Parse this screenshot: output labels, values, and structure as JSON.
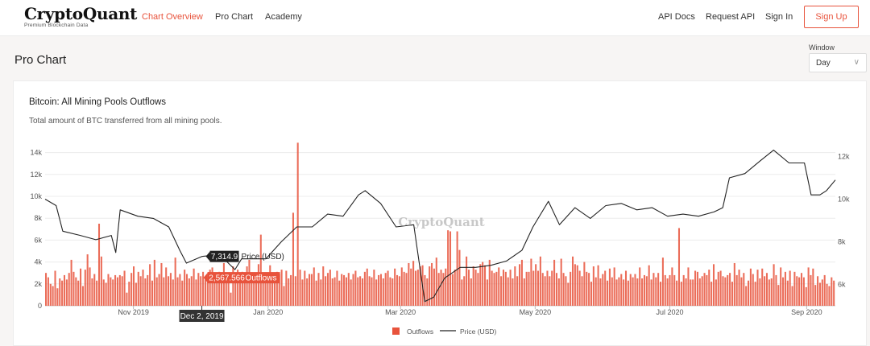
{
  "brand": {
    "name": "CryptoQuant",
    "tagline": "Premium Blockchain Data"
  },
  "nav": {
    "left": [
      "Chart Overview",
      "Pro Chart",
      "Academy"
    ],
    "right": [
      "API Docs",
      "Request API",
      "Sign In"
    ],
    "signup": "Sign Up",
    "accent": "#e8533c"
  },
  "page": {
    "title": "Pro Chart"
  },
  "window": {
    "label": "Window",
    "value": "Day"
  },
  "chart_card": {
    "title": "Bitcoin: All Mining Pools Outflows",
    "subtitle": "Total amount of BTC transferred from all mining pools."
  },
  "chart_data": {
    "type": "bar",
    "title": "Bitcoin: All Mining Pools Outflows",
    "watermark": "CryptoQuant",
    "x_ticks": [
      "Nov 2019",
      "Jan 2020",
      "Mar 2020",
      "May 2020",
      "Jul 2020",
      "Sep 2020"
    ],
    "left_axis": {
      "ticks": [
        "0",
        "2k",
        "4k",
        "6k",
        "8k",
        "10k",
        "12k",
        "14k"
      ],
      "ylim": [
        0,
        15000
      ]
    },
    "right_axis": {
      "ticks": [
        "6k",
        "8k",
        "10k",
        "12k"
      ],
      "ylim": [
        5000,
        12700
      ]
    },
    "series": [
      {
        "name": "Outflows",
        "kind": "bar",
        "color": "#e8533c",
        "x_start": "Sep 22, 2019",
        "x_end": "Sep 14, 2020",
        "values": [
          3000,
          2600,
          2000,
          1800,
          3200,
          1600,
          2500,
          2300,
          2800,
          2400,
          3000,
          4200,
          3100,
          2600,
          2300,
          3400,
          1800,
          3300,
          4700,
          3500,
          2500,
          2900,
          2300,
          7500,
          4500,
          2400,
          2100,
          2900,
          2600,
          2400,
          2800,
          2600,
          2800,
          2700,
          3200,
          1200,
          2200,
          3000,
          3600,
          2100,
          3100,
          2700,
          3300,
          2500,
          2800,
          3800,
          2300,
          4200,
          2600,
          2900,
          3900,
          2600,
          3500,
          2700,
          3000,
          2400,
          4400,
          2600,
          2900,
          2300,
          3300,
          2900,
          2500,
          2700,
          3400,
          2400,
          3000,
          2700,
          3100,
          2400,
          2500,
          3300,
          3500,
          2800,
          2400,
          3100,
          2500,
          3900,
          2700,
          2900,
          1200,
          3600,
          2400,
          3300,
          2700,
          3100,
          2800,
          3600,
          4200,
          2500,
          3000,
          2400,
          3800,
          6500,
          2600,
          3000,
          2400,
          3700,
          2700,
          2500,
          3100,
          2900,
          3300,
          1800,
          3200,
          2500,
          2800,
          8500,
          2700,
          14900,
          3300,
          2400,
          3200,
          2500,
          2900,
          2900,
          3500,
          2300,
          3000,
          2400,
          3600,
          2700,
          3000,
          3300,
          2500,
          2600,
          3200,
          2300,
          2900,
          2800,
          2600,
          3000,
          2400,
          2900,
          3200,
          2600,
          2700,
          2500,
          3100,
          3400,
          2700,
          2600,
          3300,
          2400,
          2800,
          2900,
          2500,
          3000,
          3200,
          2600,
          2500,
          3400,
          2800,
          2700,
          3500,
          3100,
          3000,
          3900,
          3400,
          4100,
          3200,
          3300,
          3600,
          3700,
          2800,
          2500,
          3600,
          3900,
          3400,
          4400,
          3000,
          3300,
          3000,
          3400,
          6900,
          6800,
          2900,
          3300,
          6800,
          5100,
          2400,
          2700,
          4500,
          3300,
          2500,
          3600,
          3300,
          3000,
          3800,
          4000,
          3700,
          2400,
          4200,
          3200,
          3000,
          3100,
          3500,
          2700,
          3300,
          3100,
          2600,
          3300,
          2500,
          3600,
          2700,
          3800,
          4200,
          2500,
          3100,
          3100,
          4300,
          3200,
          3800,
          3200,
          4500,
          3000,
          2700,
          3200,
          2700,
          3200,
          4200,
          3000,
          2500,
          4300,
          3000,
          2700,
          2100,
          3100,
          4500,
          3800,
          3700,
          3200,
          2700,
          4000,
          3100,
          3000,
          2200,
          3600,
          2600,
          3700,
          2500,
          2900,
          3200,
          2300,
          3400,
          2600,
          3500,
          2400,
          2600,
          2900,
          2400,
          3200,
          2300,
          2900,
          2600,
          2900,
          2500,
          3500,
          2500,
          2800,
          2700,
          3700,
          2400,
          3000,
          2600,
          3000,
          2200,
          4400,
          2800,
          2500,
          2800,
          3500,
          2800,
          2300,
          7100,
          2200,
          2800,
          2500,
          3500,
          2400,
          2400,
          3200,
          3100,
          2500,
          2700,
          3000,
          2800,
          3300,
          2200,
          3800,
          2400,
          3100,
          3200,
          2700,
          2600,
          2800,
          3000,
          2200,
          3900,
          2800,
          3300,
          2600,
          3000,
          1800,
          2300,
          3400,
          2900,
          2200,
          3300,
          2500,
          3400,
          2700,
          3000,
          2400,
          2500,
          3800,
          2800,
          1900,
          3500,
          2600,
          3100,
          2300,
          3200,
          1800,
          3100,
          2700,
          2600,
          3000,
          2600,
          1700,
          3500,
          2800,
          3400,
          1900,
          2700,
          2100,
          2400,
          2800,
          2000,
          1800,
          2600,
          2300
        ]
      },
      {
        "name": "Price (USD)",
        "kind": "line",
        "color": "#222222",
        "points": [
          [
            "Sep 22, 2019",
            10000
          ],
          [
            "Sep 27, 2019",
            9700
          ],
          [
            "Sep 30, 2019",
            8500
          ],
          [
            "Oct 8, 2019",
            8300
          ],
          [
            "Oct 15, 2019",
            8100
          ],
          [
            "Oct 22, 2019",
            8300
          ],
          [
            "Oct 24, 2019",
            7500
          ],
          [
            "Oct 26, 2019",
            9500
          ],
          [
            "Nov 3, 2019",
            9200
          ],
          [
            "Nov 10, 2019",
            9100
          ],
          [
            "Nov 17, 2019",
            8700
          ],
          [
            "Nov 22, 2019",
            7600
          ],
          [
            "Nov 25, 2019",
            7000
          ],
          [
            "Dec 2, 2019",
            7314.9
          ],
          [
            "Dec 10, 2019",
            7400
          ],
          [
            "Dec 17, 2019",
            6700
          ],
          [
            "Dec 20, 2019",
            7200
          ],
          [
            "Dec 31, 2019",
            7200
          ],
          [
            "Jan 7, 2020",
            8000
          ],
          [
            "Jan 14, 2020",
            8700
          ],
          [
            "Jan 21, 2020",
            8700
          ],
          [
            "Jan 28, 2020",
            9300
          ],
          [
            "Feb 4, 2020",
            9200
          ],
          [
            "Feb 11, 2020",
            10200
          ],
          [
            "Feb 14, 2020",
            10400
          ],
          [
            "Feb 21, 2020",
            9800
          ],
          [
            "Feb 28, 2020",
            8700
          ],
          [
            "Mar 7, 2020",
            8800
          ],
          [
            "Mar 12, 2020",
            5200
          ],
          [
            "Mar 16, 2020",
            5400
          ],
          [
            "Mar 21, 2020",
            6300
          ],
          [
            "Mar 28, 2020",
            6800
          ],
          [
            "Apr 4, 2020",
            6800
          ],
          [
            "Apr 11, 2020",
            6900
          ],
          [
            "Apr 18, 2020",
            7100
          ],
          [
            "Apr 25, 2020",
            7600
          ],
          [
            "Apr 30, 2020",
            8700
          ],
          [
            "May 7, 2020",
            9900
          ],
          [
            "May 12, 2020",
            8800
          ],
          [
            "May 19, 2020",
            9600
          ],
          [
            "May 26, 2020",
            9100
          ],
          [
            "Jun 2, 2020",
            9700
          ],
          [
            "Jun 9, 2020",
            9800
          ],
          [
            "Jun 16, 2020",
            9500
          ],
          [
            "Jun 23, 2020",
            9600
          ],
          [
            "Jun 30, 2020",
            9200
          ],
          [
            "Jul 7, 2020",
            9300
          ],
          [
            "Jul 14, 2020",
            9200
          ],
          [
            "Jul 21, 2020",
            9400
          ],
          [
            "Jul 25, 2020",
            9600
          ],
          [
            "Jul 28, 2020",
            11000
          ],
          [
            "Aug 4, 2020",
            11200
          ],
          [
            "Aug 11, 2020",
            11800
          ],
          [
            "Aug 17, 2020",
            12300
          ],
          [
            "Aug 24, 2020",
            11700
          ],
          [
            "Aug 31, 2020",
            11700
          ],
          [
            "Sep 3, 2020",
            10200
          ],
          [
            "Sep 7, 2020",
            10200
          ],
          [
            "Sep 10, 2020",
            10400
          ],
          [
            "Sep 14, 2020",
            10900
          ]
        ]
      }
    ],
    "tooltip": {
      "date": "Dec 2, 2019",
      "price": "7,314.9",
      "price_label": "Price (USD)",
      "outflows": "2,567.566",
      "outflows_label": "Outflows"
    },
    "legend": [
      "Outflows",
      "Price (USD)"
    ],
    "legend_position": "bottom-center"
  }
}
